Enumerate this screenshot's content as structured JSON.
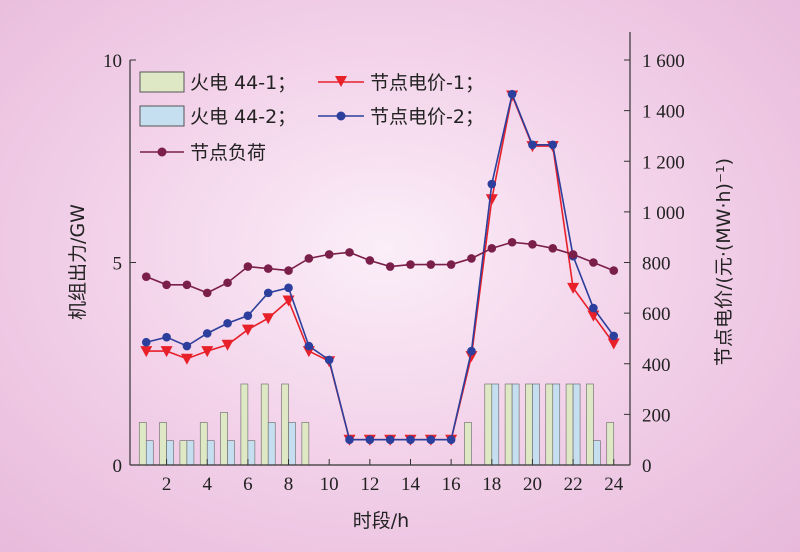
{
  "chart_data": {
    "type": "bar+line",
    "title": "",
    "xlabel": "时段/h",
    "ylabel_left": "机组出力/GW",
    "ylabel_right": "节点电价/(元·(MW·h)⁻¹)",
    "x": [
      1,
      2,
      3,
      4,
      5,
      6,
      7,
      8,
      9,
      10,
      11,
      12,
      13,
      14,
      15,
      16,
      17,
      18,
      19,
      20,
      21,
      22,
      23,
      24
    ],
    "x_ticks": [
      "2",
      "4",
      "6",
      "8",
      "10",
      "12",
      "14",
      "16",
      "18",
      "20",
      "22",
      "24"
    ],
    "x_tick_values": [
      2,
      4,
      6,
      8,
      10,
      12,
      14,
      16,
      18,
      20,
      22,
      24
    ],
    "ylim_left": [
      0,
      10
    ],
    "y_ticks_left": [
      "0",
      "5",
      "10"
    ],
    "y_tick_values_left": [
      0,
      5,
      10
    ],
    "ylim_right": [
      0,
      1600
    ],
    "y_ticks_right": [
      "0",
      "200",
      "400",
      "600",
      "800",
      "1 000",
      "1 200",
      "1 400",
      "1 600"
    ],
    "y_tick_values_right": [
      0,
      200,
      400,
      600,
      800,
      1000,
      1200,
      1400,
      1600
    ],
    "legend": {
      "bar1": "火电 44-1；",
      "bar2": "火电 44-2；",
      "line1": "节点电价-1；",
      "line2": "节点电价-2；",
      "line3": "节点负荷"
    },
    "bars": [
      {
        "name": "火电 44-1",
        "color": "#dfe8c4",
        "axis": "left",
        "values": [
          1.05,
          1.05,
          0.6,
          1.05,
          1.3,
          2.0,
          2.0,
          2.0,
          1.05,
          0,
          0,
          0,
          0,
          0,
          0,
          0,
          1.05,
          2.0,
          2.0,
          2.0,
          2.0,
          2.0,
          2.0,
          1.05
        ]
      },
      {
        "name": "火电 44-2",
        "color": "#c5def0",
        "axis": "left",
        "values": [
          0.6,
          0.6,
          0.6,
          0.6,
          0.6,
          0.6,
          1.05,
          1.05,
          0,
          0,
          0,
          0,
          0,
          0,
          0,
          0,
          0,
          2.0,
          2.0,
          2.0,
          2.0,
          2.0,
          0.6,
          0
        ]
      }
    ],
    "series": [
      {
        "name": "节点电价-1",
        "color": "#e8202a",
        "marker": "triangle-down",
        "axis": "right",
        "values": [
          450,
          450,
          420,
          450,
          475,
          535,
          580,
          650,
          450,
          410,
          100,
          100,
          100,
          100,
          100,
          100,
          430,
          1050,
          1460,
          1260,
          1260,
          700,
          590,
          480
        ]
      },
      {
        "name": "节点电价-2",
        "color": "#2d3f9c",
        "marker": "circle",
        "axis": "right",
        "values": [
          485,
          505,
          470,
          520,
          560,
          590,
          680,
          700,
          470,
          415,
          100,
          100,
          100,
          100,
          100,
          100,
          450,
          1110,
          1465,
          1265,
          1265,
          825,
          620,
          510
        ]
      },
      {
        "name": "节点负荷",
        "color": "#7a1e4a",
        "marker": "circle",
        "axis": "left",
        "values": [
          4.65,
          4.45,
          4.45,
          4.25,
          4.5,
          4.9,
          4.85,
          4.8,
          5.1,
          5.2,
          5.25,
          5.05,
          4.9,
          4.95,
          4.95,
          4.95,
          5.1,
          5.35,
          5.5,
          5.45,
          5.35,
          5.2,
          5.0,
          4.8
        ]
      }
    ]
  }
}
